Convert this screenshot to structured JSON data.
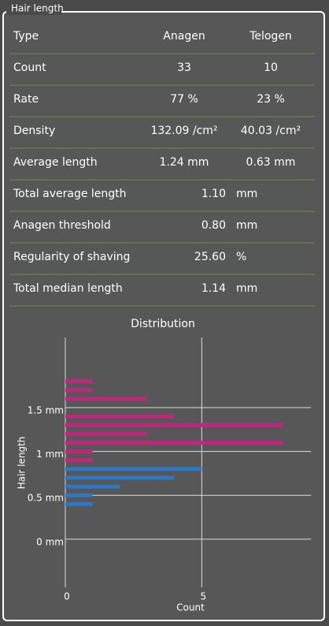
{
  "panel": {
    "title": "Hair length"
  },
  "table": {
    "rows": [
      {
        "label": "Type",
        "anagen": "Anagen",
        "telogen": "Telogen"
      },
      {
        "label": "Count",
        "anagen": "33",
        "telogen": "10"
      },
      {
        "label": "Rate",
        "anagen": "77 %",
        "telogen": "23 %"
      },
      {
        "label": "Density",
        "anagen": "132.09 /cm²",
        "telogen": "40.03 /cm²"
      },
      {
        "label": "Average length",
        "anagen": "1.24 mm",
        "telogen": "0.63 mm"
      },
      {
        "label": "Total average length",
        "value": "1.10",
        "unit": "mm"
      },
      {
        "label": "Anagen threshold",
        "value": "0.80",
        "unit": "mm"
      },
      {
        "label": "Regularity of shaving",
        "value": "25.60",
        "unit": "%"
      },
      {
        "label": "Total median length",
        "value": "1.14",
        "unit": "mm"
      }
    ]
  },
  "chart_data": {
    "type": "bar",
    "orientation": "horizontal",
    "title": "Distribution",
    "xlabel": "Count",
    "ylabel": "Hair length",
    "series": [
      {
        "color": "#c0267e",
        "y": [
          1.8,
          1.7,
          1.6,
          1.4,
          1.3,
          1.2,
          1.1,
          1.0,
          0.9
        ],
        "values": [
          1,
          1,
          3,
          4,
          8,
          3,
          8,
          1,
          1
        ]
      },
      {
        "color": "#2b78c8",
        "y": [
          0.8,
          0.7,
          0.6,
          0.5,
          0.4
        ],
        "values": [
          5,
          4,
          2,
          1,
          1
        ]
      }
    ],
    "xlim": [
      0,
      9
    ],
    "xticks": [
      0,
      5
    ],
    "ylim": [
      -0.55,
      2.3
    ],
    "yticks": [
      {
        "value": 0,
        "label": "0 mm"
      },
      {
        "value": 0.5,
        "label": "0.5 mm"
      },
      {
        "value": 1,
        "label": "1 mm"
      },
      {
        "value": 1.5,
        "label": "1.5 mm"
      }
    ],
    "grid": true
  }
}
